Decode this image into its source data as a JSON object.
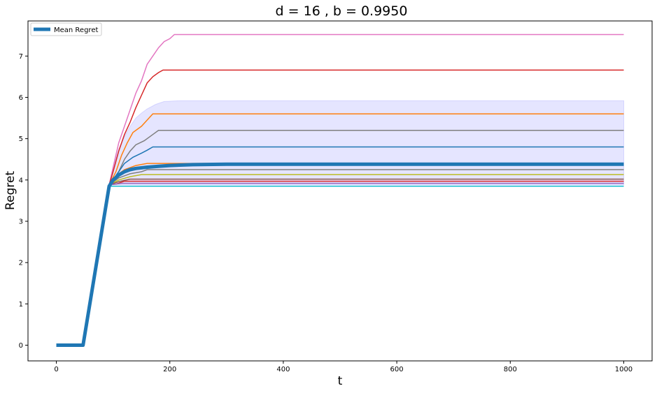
{
  "chart_data": {
    "type": "line",
    "title": "d = 16 , b = 0.9950",
    "xlabel": "t",
    "ylabel": "Regret",
    "xlim": [
      -50,
      1050
    ],
    "ylim": [
      -0.38,
      7.85
    ],
    "xticks": [
      0,
      200,
      400,
      600,
      800,
      1000
    ],
    "yticks": [
      0,
      1,
      2,
      3,
      4,
      5,
      6,
      7
    ],
    "grid": false,
    "legend": {
      "placement": "top-left",
      "entries": [
        "Mean Regret"
      ]
    },
    "band": {
      "color": "#0000ff",
      "upper": [
        [
          0,
          0
        ],
        [
          47,
          0
        ],
        [
          93,
          3.88
        ],
        [
          100,
          4.3
        ],
        [
          110,
          4.75
        ],
        [
          120,
          5.05
        ],
        [
          130,
          5.3
        ],
        [
          140,
          5.5
        ],
        [
          150,
          5.62
        ],
        [
          160,
          5.72
        ],
        [
          175,
          5.83
        ],
        [
          190,
          5.9
        ],
        [
          220,
          5.92
        ],
        [
          1000,
          5.92
        ]
      ],
      "lower": [
        [
          0,
          0
        ],
        [
          47,
          0
        ],
        [
          93,
          3.88
        ],
        [
          1000,
          3.88
        ]
      ]
    },
    "series": [
      {
        "color": "#e377c2",
        "points": [
          [
            93,
            3.88
          ],
          [
            100,
            4.3
          ],
          [
            110,
            4.9
          ],
          [
            120,
            5.3
          ],
          [
            130,
            5.7
          ],
          [
            140,
            6.1
          ],
          [
            150,
            6.4
          ],
          [
            160,
            6.8
          ],
          [
            170,
            7.0
          ],
          [
            180,
            7.2
          ],
          [
            190,
            7.35
          ],
          [
            200,
            7.42
          ],
          [
            208,
            7.52
          ],
          [
            1000,
            7.52
          ]
        ]
      },
      {
        "color": "#d62728",
        "points": [
          [
            93,
            3.88
          ],
          [
            100,
            4.2
          ],
          [
            110,
            4.7
          ],
          [
            120,
            5.1
          ],
          [
            130,
            5.4
          ],
          [
            140,
            5.75
          ],
          [
            150,
            6.05
          ],
          [
            160,
            6.35
          ],
          [
            170,
            6.5
          ],
          [
            180,
            6.6
          ],
          [
            188,
            6.66
          ],
          [
            1000,
            6.66
          ]
        ]
      },
      {
        "color": "#ff7f0e",
        "points": [
          [
            93,
            3.88
          ],
          [
            105,
            4.2
          ],
          [
            115,
            4.6
          ],
          [
            125,
            4.9
          ],
          [
            135,
            5.15
          ],
          [
            150,
            5.3
          ],
          [
            160,
            5.45
          ],
          [
            170,
            5.6
          ],
          [
            1000,
            5.6
          ]
        ]
      },
      {
        "color": "#7f7f7f",
        "points": [
          [
            93,
            3.88
          ],
          [
            110,
            4.2
          ],
          [
            120,
            4.5
          ],
          [
            130,
            4.7
          ],
          [
            140,
            4.85
          ],
          [
            155,
            4.95
          ],
          [
            170,
            5.1
          ],
          [
            180,
            5.2
          ],
          [
            1000,
            5.2
          ]
        ]
      },
      {
        "color": "#1f77b4",
        "points": [
          [
            93,
            3.88
          ],
          [
            110,
            4.2
          ],
          [
            120,
            4.4
          ],
          [
            135,
            4.55
          ],
          [
            150,
            4.65
          ],
          [
            160,
            4.72
          ],
          [
            170,
            4.8
          ],
          [
            1000,
            4.8
          ]
        ]
      },
      {
        "color": "#ff7f0e",
        "points": [
          [
            93,
            3.88
          ],
          [
            105,
            4.1
          ],
          [
            120,
            4.25
          ],
          [
            140,
            4.35
          ],
          [
            160,
            4.4
          ],
          [
            1000,
            4.4
          ]
        ]
      },
      {
        "color": "#7f7f7f",
        "points": [
          [
            93,
            3.88
          ],
          [
            110,
            4.05
          ],
          [
            130,
            4.15
          ],
          [
            150,
            4.2
          ],
          [
            160,
            4.25
          ],
          [
            1000,
            4.25
          ]
        ]
      },
      {
        "color": "#bcbd22",
        "points": [
          [
            93,
            3.88
          ],
          [
            110,
            4.0
          ],
          [
            130,
            4.08
          ],
          [
            150,
            4.13
          ],
          [
            1000,
            4.13
          ]
        ]
      },
      {
        "color": "#8c564b",
        "points": [
          [
            93,
            3.88
          ],
          [
            110,
            3.96
          ],
          [
            130,
            4.02
          ],
          [
            1000,
            4.02
          ]
        ]
      },
      {
        "color": "#d62728",
        "points": [
          [
            93,
            3.88
          ],
          [
            105,
            3.9
          ],
          [
            120,
            3.97
          ],
          [
            1000,
            3.97
          ]
        ]
      },
      {
        "color": "#9467bd",
        "points": [
          [
            93,
            3.88
          ],
          [
            115,
            3.92
          ],
          [
            1000,
            3.92
          ]
        ]
      },
      {
        "color": "#17becf",
        "points": [
          [
            93,
            3.85
          ],
          [
            1000,
            3.85
          ]
        ]
      }
    ],
    "mean": {
      "name": "Mean Regret",
      "color": "#1f77b4",
      "points": [
        [
          0,
          0
        ],
        [
          47,
          0
        ],
        [
          93,
          3.85
        ],
        [
          100,
          4.0
        ],
        [
          110,
          4.12
        ],
        [
          120,
          4.2
        ],
        [
          130,
          4.25
        ],
        [
          140,
          4.28
        ],
        [
          160,
          4.31
        ],
        [
          180,
          4.33
        ],
        [
          200,
          4.35
        ],
        [
          240,
          4.37
        ],
        [
          300,
          4.38
        ],
        [
          1000,
          4.38
        ]
      ]
    }
  }
}
